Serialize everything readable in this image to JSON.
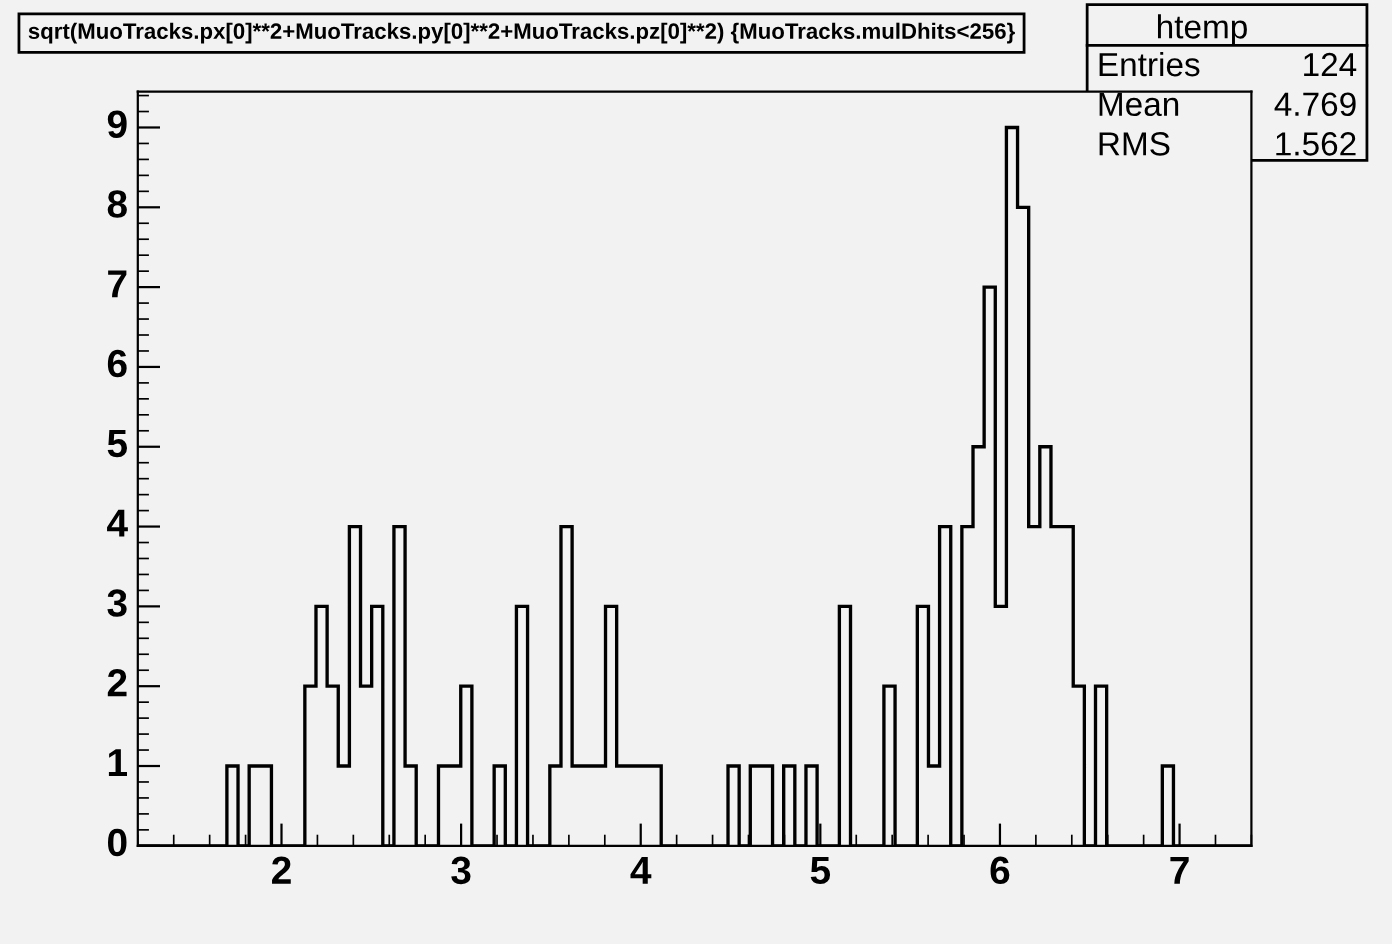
{
  "chart_data": {
    "type": "histogram",
    "title": "sqrt(MuoTracks.px[0]**2+MuoTracks.py[0]**2+MuoTracks.pz[0]**2) {MuoTracks.mulDhits<256}",
    "annotations": [
      "htemp",
      "Entries 124",
      "Mean 4.769",
      "RMS 1.562"
    ],
    "bins": [
      1.2,
      1.262,
      1.324,
      1.386,
      1.448,
      1.51,
      1.572,
      1.634,
      1.696,
      1.758,
      1.82,
      1.882,
      1.944,
      2.006,
      2.068,
      2.13,
      2.192,
      2.254,
      2.316,
      2.378,
      2.44,
      2.502,
      2.564,
      2.626,
      2.688,
      2.75,
      2.812,
      2.874,
      2.936,
      2.998,
      3.06,
      3.122,
      3.184,
      3.246,
      3.308,
      3.37,
      3.432,
      3.494,
      3.556,
      3.618,
      3.68,
      3.742,
      3.804,
      3.866,
      3.928,
      3.99,
      4.052,
      4.114,
      4.176,
      4.238,
      4.3,
      4.362,
      4.424,
      4.486,
      4.548,
      4.61,
      4.672,
      4.734,
      4.796,
      4.858,
      4.92,
      4.982,
      5.044,
      5.106,
      5.168,
      5.23,
      5.292,
      5.354,
      5.416,
      5.478,
      5.54,
      5.602,
      5.664,
      5.726,
      5.788,
      5.85,
      5.912,
      5.974,
      6.036,
      6.098,
      6.16,
      6.222,
      6.284,
      6.346,
      6.408,
      6.47,
      6.532,
      6.594,
      6.656,
      6.718,
      6.78,
      6.842,
      6.904,
      6.966,
      7.028,
      7.09,
      7.152,
      7.214,
      7.276,
      7.338,
      7.4
    ],
    "values": [
      0,
      0,
      0,
      0,
      0,
      0,
      0,
      0,
      1,
      0,
      1,
      1,
      0,
      0,
      0,
      2,
      3,
      2,
      1,
      4,
      2,
      3,
      0,
      4,
      1,
      0,
      0,
      1,
      1,
      2,
      0,
      0,
      1,
      0,
      3,
      0,
      0,
      1,
      4,
      1,
      1,
      1,
      3,
      1,
      1,
      1,
      1,
      0,
      0,
      0,
      0,
      0,
      0,
      1,
      0,
      1,
      1,
      0,
      1,
      0,
      1,
      0,
      0,
      3,
      0,
      0,
      0,
      2,
      0,
      0,
      3,
      1,
      4,
      0,
      4,
      5,
      7,
      3,
      9,
      8,
      4,
      5,
      4,
      4,
      2,
      0,
      2,
      0,
      0,
      0,
      0,
      0,
      1,
      0,
      0,
      0,
      0,
      0,
      0,
      0
    ],
    "color": "#000000",
    "xlim": [
      1.2,
      7.4
    ],
    "xticks": [
      2,
      3,
      4,
      5,
      6,
      7
    ],
    "ylim": [
      0,
      9.45
    ],
    "yticks": [
      0,
      1,
      2,
      3,
      4,
      5,
      6,
      7,
      8,
      9
    ],
    "grid": false,
    "legend": false
  }
}
